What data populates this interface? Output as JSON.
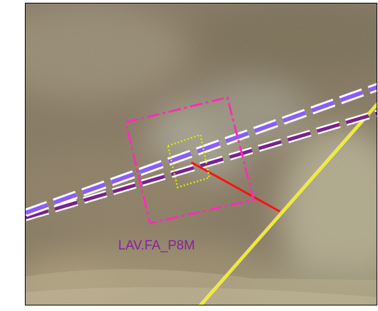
{
  "map": {
    "label": "LAV.FA_P8M",
    "colors": {
      "label": "#8e1c9e",
      "footprint_outline": "#ff2bb8",
      "inner_box": "#d8f000",
      "offset_line": "#ff1010",
      "road_line": "#f6f000",
      "flight_line_primary": "#8a5cff",
      "flight_line_secondary": "#7a2090",
      "flight_line_casing": "#ffffff",
      "ground": "#8a7c62"
    }
  }
}
